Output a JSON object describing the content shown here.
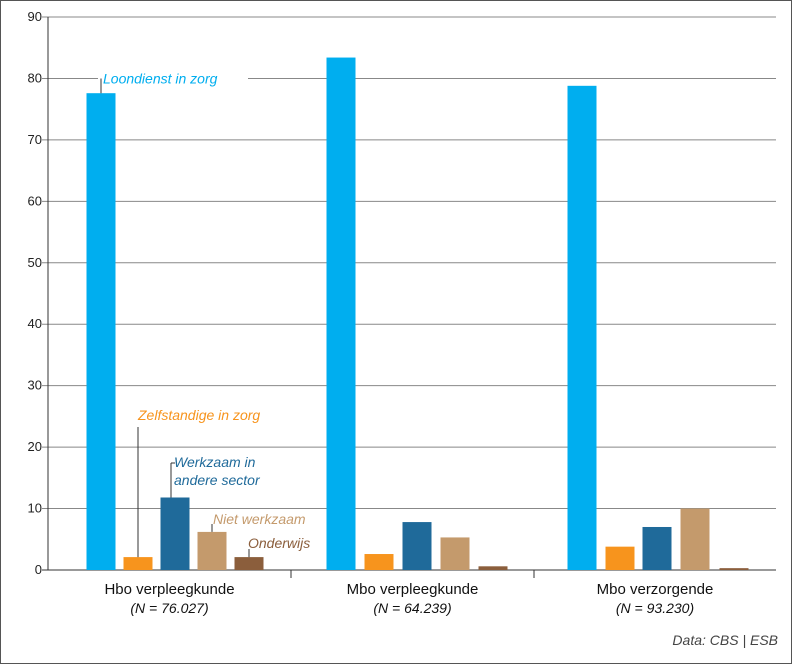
{
  "chart_data": {
    "type": "bar",
    "ylim": [
      0,
      90
    ],
    "yticks": [
      0,
      10,
      20,
      30,
      40,
      50,
      60,
      70,
      80,
      90
    ],
    "grid": true,
    "categories": [
      "Hbo verpleegkunde",
      "Mbo verpleegkunde",
      "Mbo verzorgende"
    ],
    "category_sublabels": [
      "(N = 76.027)",
      "(N = 64.239)",
      "(N = 93.230)"
    ],
    "series": [
      {
        "name": "Loondienst in zorg",
        "color": "#00aeef",
        "values": [
          77.6,
          83.4,
          78.8
        ]
      },
      {
        "name": "Zelfstandige in zorg",
        "color": "#f7941d",
        "values": [
          2.1,
          2.6,
          3.8
        ]
      },
      {
        "name": "Werkzaam in andere sector",
        "name_lines": [
          "Werkzaam in",
          "andere sector"
        ],
        "color": "#1f6a9a",
        "values": [
          11.8,
          7.8,
          7.0
        ]
      },
      {
        "name": "Niet werkzaam",
        "color": "#c49a6c",
        "values": [
          6.2,
          5.3,
          10.0
        ]
      },
      {
        "name": "Onderwijs",
        "color": "#8b5e3c",
        "values": [
          2.1,
          0.6,
          0.3
        ]
      }
    ],
    "source": "Data: CBS | ESB"
  }
}
